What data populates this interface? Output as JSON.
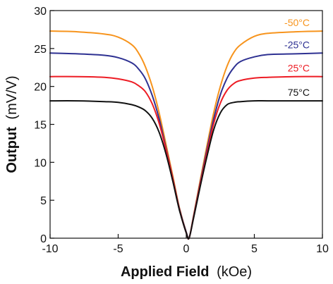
{
  "chart_data": {
    "type": "line",
    "title": "",
    "xlabel": {
      "bold": "Applied Field",
      "normal": "(kOe)"
    },
    "ylabel": {
      "bold": "Output",
      "normal": "(mV/V)"
    },
    "xlim": [
      -10,
      10
    ],
    "ylim": [
      0,
      30
    ],
    "xticks": [
      -10,
      -5,
      0,
      5,
      10
    ],
    "yticks": [
      0,
      5,
      10,
      15,
      20,
      25,
      30
    ],
    "grid": false,
    "legend": "inline-labels-right",
    "series": [
      {
        "name": "-50°C",
        "color": "#f7941d",
        "x": [
          -10,
          -8,
          -6,
          -5,
          -4,
          -3.5,
          -3,
          -2.5,
          -2,
          -1.5,
          -1,
          -0.5,
          0,
          0.2,
          0.5,
          1,
          1.5,
          2,
          2.5,
          3,
          3.5,
          4,
          5,
          6,
          8,
          10
        ],
        "y": [
          27.3,
          27.2,
          26.9,
          26.5,
          25.5,
          24.4,
          22.6,
          20.0,
          16.6,
          12.5,
          8.3,
          4.0,
          0.8,
          0,
          2.6,
          7.4,
          12.0,
          16.4,
          20.0,
          22.7,
          24.5,
          25.5,
          26.6,
          27.0,
          27.2,
          27.3
        ]
      },
      {
        "name": "-25°C",
        "color": "#2e3192",
        "x": [
          -10,
          -8,
          -6,
          -5,
          -4,
          -3.5,
          -3,
          -2.5,
          -2,
          -1.5,
          -1,
          -0.5,
          0,
          0.2,
          0.5,
          1,
          1.5,
          2,
          2.5,
          3,
          3.5,
          4,
          5,
          6,
          8,
          10
        ],
        "y": [
          24.4,
          24.3,
          24.1,
          23.8,
          23.1,
          22.3,
          21.0,
          18.8,
          15.8,
          12.0,
          8.0,
          3.9,
          0.8,
          0,
          2.5,
          7.1,
          11.5,
          15.6,
          18.9,
          21.1,
          22.5,
          23.3,
          23.9,
          24.2,
          24.3,
          24.4
        ]
      },
      {
        "name": "25°C",
        "color": "#ed1c24",
        "x": [
          -10,
          -8,
          -6,
          -5,
          -4,
          -3.5,
          -3,
          -2.5,
          -2,
          -1.5,
          -1,
          -0.5,
          0,
          0.2,
          0.5,
          1,
          1.5,
          2,
          2.5,
          3,
          3.5,
          4,
          5,
          6,
          8,
          10
        ],
        "y": [
          21.3,
          21.3,
          21.2,
          21.0,
          20.6,
          20.1,
          19.3,
          17.7,
          15.2,
          11.8,
          7.9,
          3.8,
          0.7,
          0,
          2.4,
          6.9,
          11.1,
          15.0,
          17.8,
          19.5,
          20.4,
          20.8,
          21.1,
          21.2,
          21.3,
          21.3
        ]
      },
      {
        "name": "75°C",
        "color": "#111111",
        "x": [
          -10,
          -8,
          -6,
          -5,
          -4,
          -3.5,
          -3,
          -2.5,
          -2,
          -1.5,
          -1,
          -0.5,
          0,
          0.2,
          0.5,
          1,
          1.5,
          2,
          2.5,
          3,
          3.5,
          4,
          5,
          6,
          8,
          10
        ],
        "y": [
          18.1,
          18.1,
          18.0,
          17.9,
          17.6,
          17.3,
          16.8,
          15.8,
          14.0,
          11.2,
          7.6,
          3.7,
          0.7,
          0,
          2.3,
          6.6,
          10.6,
          14.2,
          16.5,
          17.6,
          17.9,
          18.0,
          18.1,
          18.1,
          18.1,
          18.1
        ]
      }
    ]
  }
}
